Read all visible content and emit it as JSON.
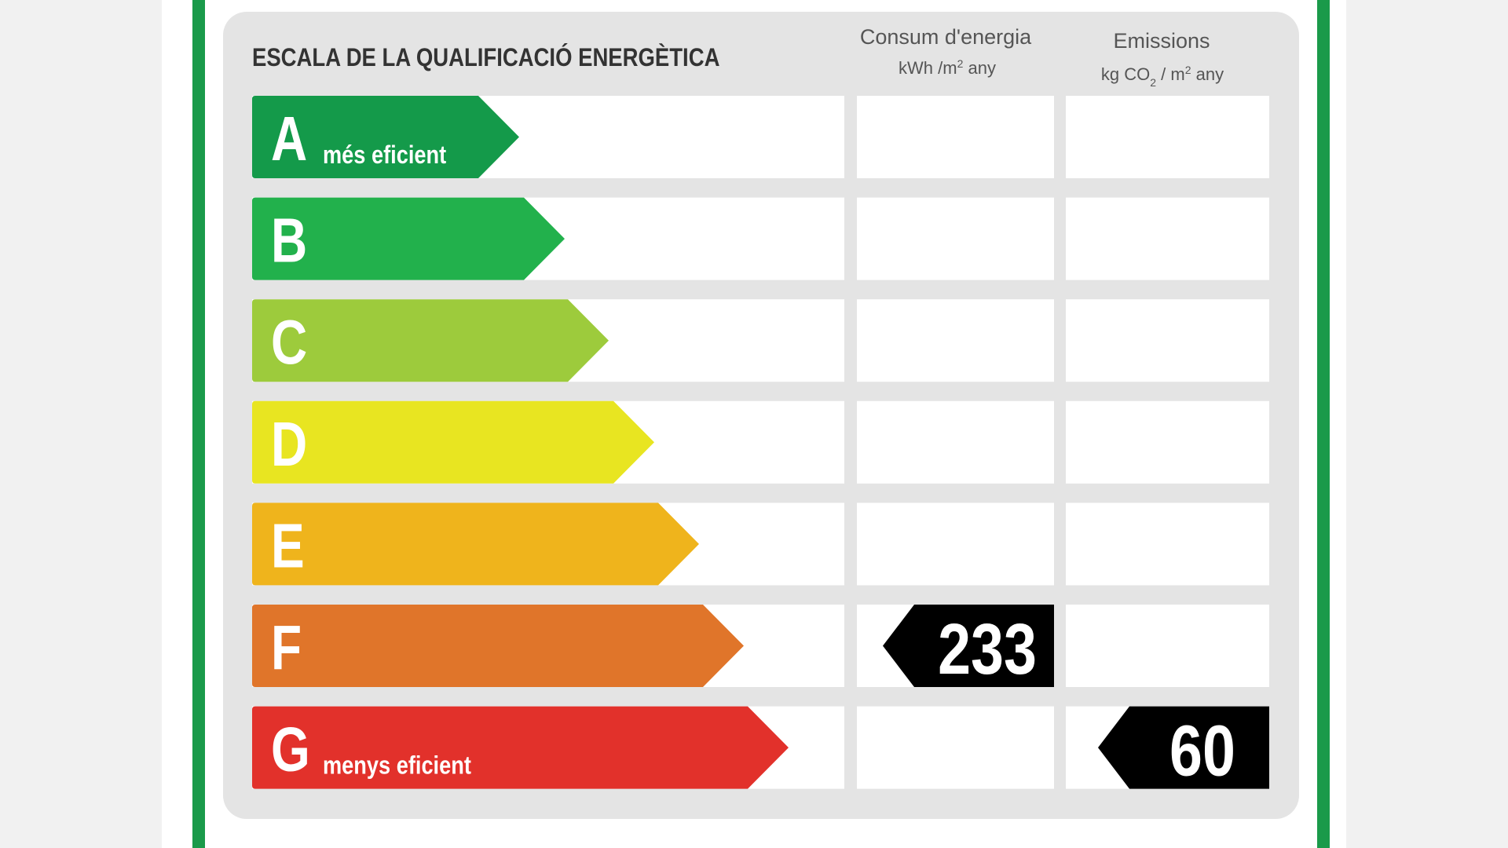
{
  "title": "ESCALA DE LA QUALIFICACIÓ ENERGÈTICA",
  "columns": {
    "energy": {
      "heading": "Consum d'energia",
      "unit": [
        {
          "t": "kWh /m"
        },
        {
          "t": "2",
          "sup": true
        },
        {
          "t": " any"
        }
      ]
    },
    "emissions": {
      "heading": "Emissions",
      "unit": [
        {
          "t": "kg CO"
        },
        {
          "t": "2",
          "sub": true
        },
        {
          "t": " / m"
        },
        {
          "t": "2",
          "sup": true
        },
        {
          "t": " any"
        }
      ]
    }
  },
  "rows": [
    {
      "letter": "A",
      "label": "més eficient",
      "color": "#149a4a"
    },
    {
      "letter": "B",
      "color": "#22b14c"
    },
    {
      "letter": "C",
      "color": "#9dcb3c"
    },
    {
      "letter": "D",
      "color": "#e8e521"
    },
    {
      "letter": "E",
      "color": "#efb41c"
    },
    {
      "letter": "F",
      "color": "#e0752a",
      "energy": 233
    },
    {
      "letter": "G",
      "label": "menys eficient",
      "color": "#e2312b",
      "emissions": 60
    }
  ]
}
